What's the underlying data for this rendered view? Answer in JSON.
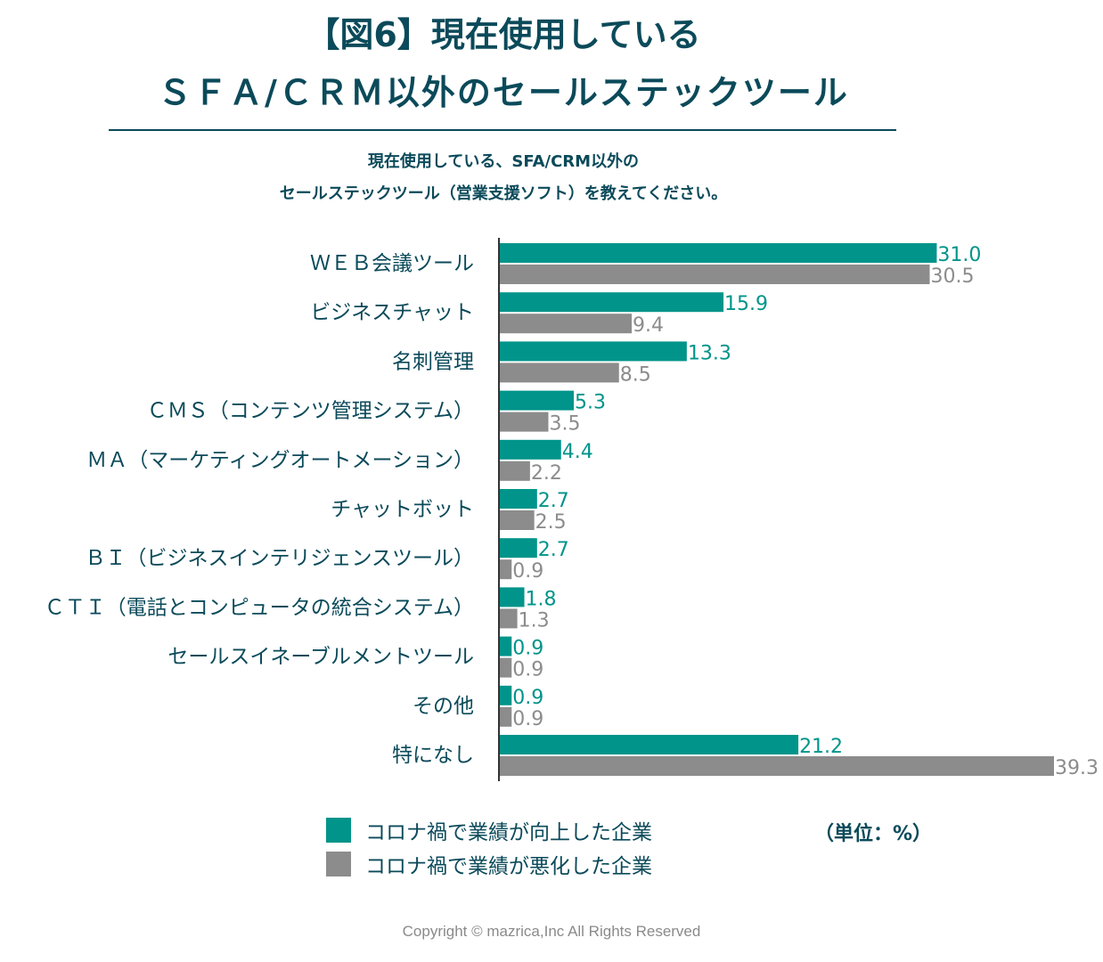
{
  "header": {
    "title_line1": "【図6】現在使用している",
    "title_line2": "ＳＦＡ/ＣＲＭ以外のセールステックツール",
    "question_line1": "現在使用している、SFA/CRM以外の",
    "question_line2": "セールステックツール（営業支援ソフト）を教えてください。"
  },
  "colors": {
    "improved": "#00948a",
    "worsened": "#8c8c8c",
    "text": "#0b4a5a"
  },
  "chart_data": {
    "type": "bar",
    "orientation": "horizontal",
    "categories": [
      "ＷＥＢ会議ツール",
      "ビジネスチャット",
      "名刺管理",
      "ＣＭＳ（コンテンツ管理システム）",
      "ＭＡ（マーケティングオートメーション）",
      "チャットボット",
      "ＢＩ（ビジネスインテリジェンスツール）",
      "ＣＴＩ（電話とコンピュータの統合システム）",
      "セールスイネーブルメントツール",
      "その他",
      "特になし"
    ],
    "series": [
      {
        "name": "コロナ禍で業績が向上した企業",
        "color": "#00948a",
        "values": [
          31.0,
          15.9,
          13.3,
          5.3,
          4.4,
          2.7,
          2.7,
          1.8,
          0.9,
          0.9,
          21.2
        ],
        "labels": [
          "31.0",
          "15.9",
          "13.3",
          "5.3",
          "4.4",
          "2.7",
          "2.7",
          "1.8",
          "0.9",
          "0.9",
          "21.2"
        ]
      },
      {
        "name": "コロナ禍で業績が悪化した企業",
        "color": "#8c8c8c",
        "values": [
          30.5,
          9.4,
          8.5,
          3.5,
          2.2,
          2.5,
          0.9,
          1.3,
          0.9,
          0.9,
          39.3
        ],
        "labels": [
          "30.5",
          "9.4",
          "8.5",
          "3.5",
          "2.2",
          "2.5",
          "0.9",
          "1.3",
          "0.9",
          "0.9",
          "39.3"
        ]
      }
    ],
    "xlim": [
      0,
      39.3
    ],
    "unit": "（単位：%）",
    "grid": false,
    "legend_position": "bottom"
  },
  "legend": {
    "improved_label": "コロナ禍で業績が向上した企業",
    "worsened_label": "コロナ禍で業績が悪化した企業"
  },
  "footer": {
    "unit_note": "（単位：%）",
    "copyright": "Copyright © mazrica,Inc All Rights Reserved"
  }
}
